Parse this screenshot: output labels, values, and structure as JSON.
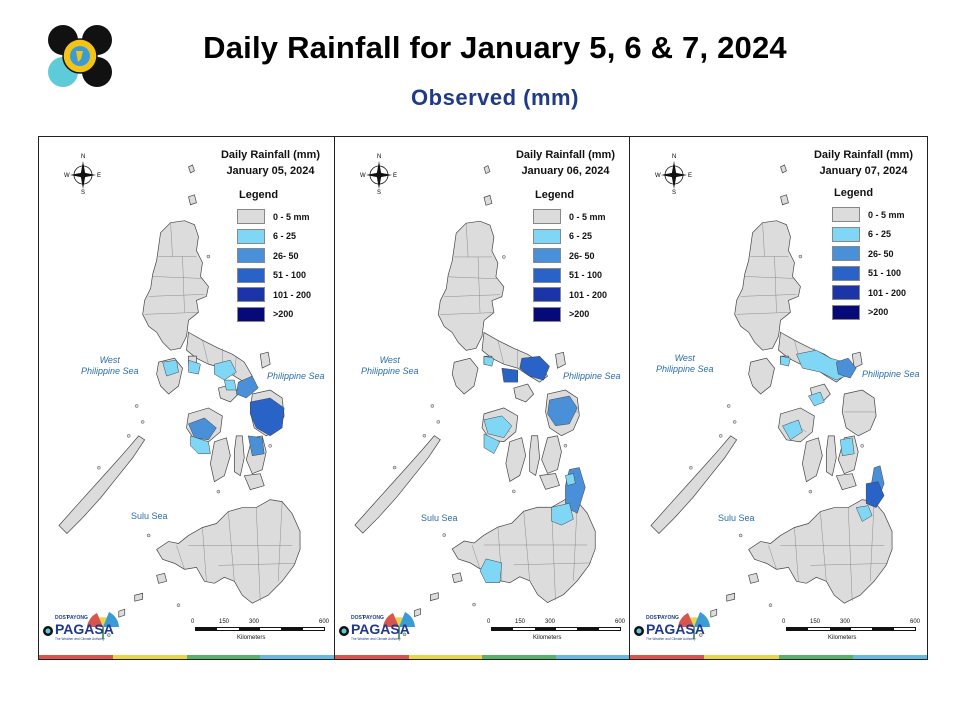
{
  "header": {
    "title": "Daily Rainfall for January 5, 6 & 7, 2024",
    "subtitle": "Observed (mm)"
  },
  "legend": {
    "title": "Legend",
    "items": [
      {
        "label": "0 - 5 mm",
        "color": "#dcdcdc"
      },
      {
        "label": "6 - 25",
        "color": "#7fd6f5"
      },
      {
        "label": "26- 50",
        "color": "#4a90d9"
      },
      {
        "label": "51 - 100",
        "color": "#2a63c7"
      },
      {
        "label": "101 - 200",
        "color": "#1b34a8"
      },
      {
        "label": ">200",
        "color": "#060a78"
      }
    ]
  },
  "maps": [
    {
      "heading": "Daily Rainfall (mm)",
      "date": "January 05, 2024"
    },
    {
      "heading": "Daily Rainfall (mm)",
      "date": "January 06, 2024"
    },
    {
      "heading": "Daily Rainfall (mm)",
      "date": "January 07, 2024"
    }
  ],
  "seas": {
    "west": "West\nPhilippine Sea",
    "east": "Philippine Sea",
    "sulu": "Sulu Sea"
  },
  "compass": {
    "n": "N",
    "s": "S",
    "e": "E",
    "w": "W"
  },
  "scale": {
    "ticks": [
      "0",
      "150",
      "300",
      "600"
    ],
    "unit": "Kilometers"
  },
  "branding": {
    "name": "PAGASA",
    "tag": "DOST",
    "small": "PAYONG",
    "motto": "The Weather and Climate Authority"
  },
  "colors": {
    "land": "#dcdcdc",
    "border": "#444444",
    "sea_text": "#2b6ea8",
    "subtitle": "#1f3a8a",
    "strip": [
      "#d9534f",
      "#e8d44d",
      "#5bb06b",
      "#6ab7e0"
    ]
  }
}
